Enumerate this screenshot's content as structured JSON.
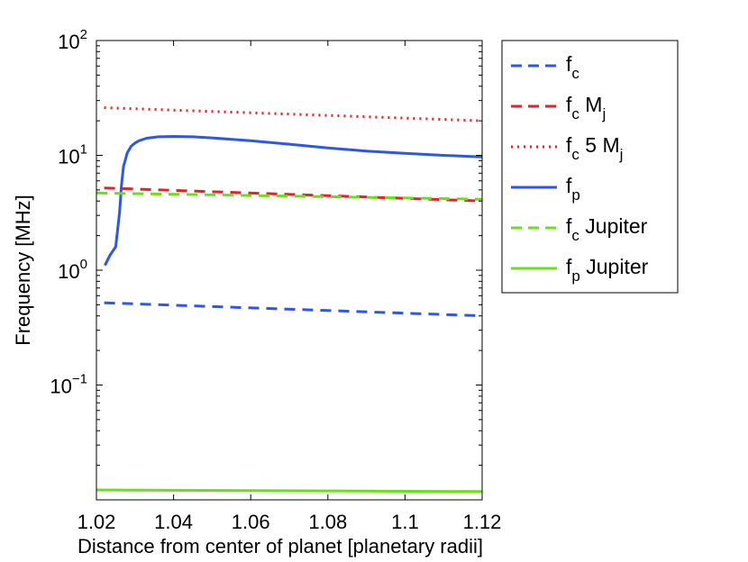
{
  "chart_data": {
    "type": "line",
    "xlabel": "Distance from center of planet [planetary radii]",
    "ylabel": "Frequency [MHz]",
    "xlim": [
      1.02,
      1.12
    ],
    "ylim": [
      0.01,
      100
    ],
    "yscale": "log",
    "x_ticks": [
      {
        "value": 1.02,
        "label": "1.02"
      },
      {
        "value": 1.04,
        "label": "1.04"
      },
      {
        "value": 1.06,
        "label": "1.06"
      },
      {
        "value": 1.08,
        "label": "1.08"
      },
      {
        "value": 1.1,
        "label": "1.1"
      },
      {
        "value": 1.12,
        "label": "1.12"
      }
    ],
    "y_ticks": [
      {
        "value": 0.1,
        "base": "10",
        "exp": "−1"
      },
      {
        "value": 1,
        "base": "10",
        "exp": "0"
      },
      {
        "value": 10,
        "base": "10",
        "exp": "1"
      },
      {
        "value": 100,
        "base": "10",
        "exp": "2"
      }
    ],
    "legend_position": "outside-right",
    "grid": false,
    "series": [
      {
        "id": "fc",
        "label": "f",
        "sub": "c",
        "rest": "",
        "color": "#2f56e8",
        "style": "dashed",
        "x": [
          1.022,
          1.12
        ],
        "y": [
          0.52,
          0.4
        ]
      },
      {
        "id": "fcMj",
        "label": "f",
        "sub": "c",
        "rest": " M",
        "restsub": "j",
        "color": "#e8202a",
        "style": "dashed",
        "x": [
          1.022,
          1.12
        ],
        "y": [
          5.2,
          4.0
        ]
      },
      {
        "id": "fc5Mj",
        "label": "f",
        "sub": "c",
        "rest": " 5 M",
        "restsub": "j",
        "color": "#e8202a",
        "style": "dotted",
        "x": [
          1.022,
          1.12
        ],
        "y": [
          26.0,
          20.0
        ]
      },
      {
        "id": "fp",
        "label": "f",
        "sub": "p",
        "rest": "",
        "color": "#2f56e8",
        "style": "solid",
        "x": [
          1.0222,
          1.0235,
          1.025,
          1.026,
          1.0265,
          1.027,
          1.028,
          1.029,
          1.03,
          1.031,
          1.033,
          1.036,
          1.04,
          1.045,
          1.05,
          1.06,
          1.07,
          1.08,
          1.09,
          1.1,
          1.11,
          1.12
        ],
        "y": [
          1.1,
          1.35,
          1.6,
          3.2,
          5.5,
          8.0,
          10.5,
          12.0,
          12.8,
          13.4,
          14.1,
          14.5,
          14.6,
          14.5,
          14.2,
          13.4,
          12.5,
          11.6,
          10.9,
          10.4,
          10.0,
          9.7
        ]
      },
      {
        "id": "fcJup",
        "label": "f",
        "sub": "c",
        "rest": " Jupiter",
        "color": "#6ae01a",
        "style": "dashed",
        "x": [
          1.02,
          1.12
        ],
        "y": [
          4.7,
          4.15
        ]
      },
      {
        "id": "fpJup",
        "label": "f",
        "sub": "p",
        "rest": " Jupiter",
        "color": "#6ae01a",
        "style": "solid",
        "x": [
          1.02,
          1.12
        ],
        "y": [
          0.0122,
          0.0118
        ]
      }
    ]
  }
}
